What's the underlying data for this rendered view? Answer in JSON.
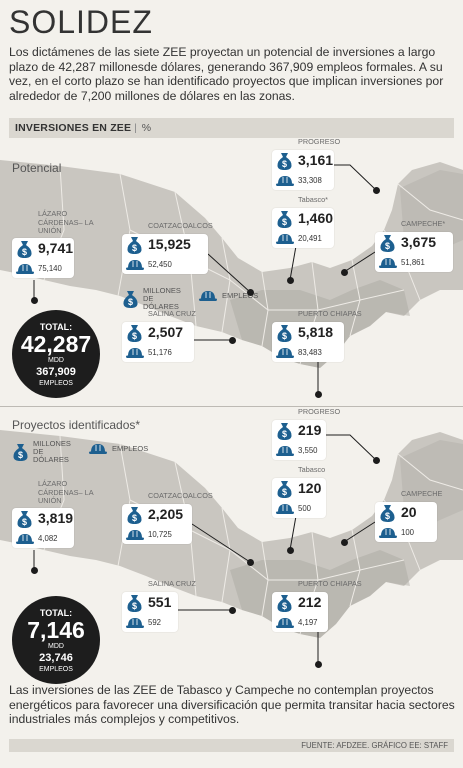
{
  "title": "SOLIDEZ",
  "intro": "Los dictámenes de las siete ZEE proyectan un potencial de inversiones a largo plazo de 42,287 millonesde dólares, generando 367,909 empleos formales. A su vez, en el corto plazo se han identificado proyectos que implican inversiones por alrededor de 7,200 millones de dólares en las zonas.",
  "bar": {
    "label": "INVERSIONES EN ZEE",
    "unit": "%"
  },
  "legend": {
    "money": "MILLONES DE DÓLARES",
    "jobs": "EMPLEOS"
  },
  "icons": {
    "money": "money-bag-icon",
    "jobs": "hard-hat-icon"
  },
  "colors": {
    "map_land": "#c9c6c0",
    "map_shadow": "#a9a6a0",
    "dark": "#1d1d1d",
    "accent": "#1d5f8f",
    "page": "#f3f1ec"
  },
  "sections": [
    {
      "label": "Potencial",
      "total": {
        "label": "TOTAL:",
        "value": "42,287",
        "unit": "MDD",
        "jobs": "367,909",
        "jobs_label": "EMPLEOS"
      },
      "zones": {
        "progreso": {
          "name": "PROGRESO",
          "value": "3,161",
          "jobs": "33,308"
        },
        "tabasco": {
          "name": "Tabasco*",
          "value": "1,460",
          "jobs": "20,491"
        },
        "campeche": {
          "name": "CAMPECHE*",
          "value": "3,675",
          "jobs": "51,861"
        },
        "lazaro": {
          "name": "LÁZARO CÁRDENAS– LA UNIÓN",
          "value": "9,741",
          "jobs": "75,140"
        },
        "coatza": {
          "name": "COATZACOALCOS",
          "value": "15,925",
          "jobs": "52,450"
        },
        "salina": {
          "name": "SALINA CRUZ",
          "value": "2,507",
          "jobs": "51,176"
        },
        "chiapas": {
          "name": "PUERTO CHIAPAS",
          "value": "5,818",
          "jobs": "83,483"
        }
      }
    },
    {
      "label": "Proyectos identificados*",
      "total": {
        "label": "TOTAL:",
        "value": "7,146",
        "unit": "MDD",
        "jobs": "23,746",
        "jobs_label": "EMPLEOS"
      },
      "zones": {
        "progreso": {
          "name": "PROGRESO",
          "value": "219",
          "jobs": "3,550"
        },
        "tabasco": {
          "name": "Tabasco",
          "value": "120",
          "jobs": "500"
        },
        "campeche": {
          "name": "CAMPECHE",
          "value": "20",
          "jobs": "100"
        },
        "lazaro": {
          "name": "LÁZARO CÁRDENAS– LA UNIÓN",
          "value": "3,819",
          "jobs": "4,082"
        },
        "coatza": {
          "name": "COATZACOALCOS",
          "value": "2,205",
          "jobs": "10,725"
        },
        "salina": {
          "name": "SALINA CRUZ",
          "value": "551",
          "jobs": "592"
        },
        "chiapas": {
          "name": "PUERTO CHIAPAS",
          "value": "212",
          "jobs": "4,197"
        }
      }
    }
  ],
  "footer": "Las inversiones de las ZEE de Tabasco y Campeche no contemplan proyectos energéticos para favorecer una diversificación que permita transitar hacia sectores industriales más complejos y competitivos.",
  "source": "FUENTE: AFDZEE. GRÁFICO EE: STAFF"
}
